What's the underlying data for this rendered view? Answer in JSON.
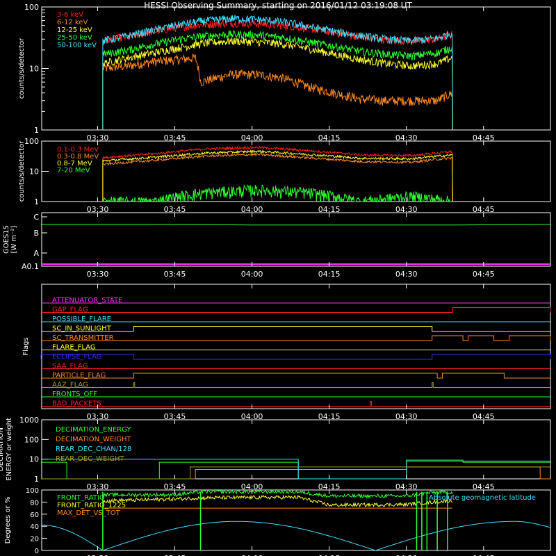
{
  "title": "HESSI Observing Summary, starting on 2016/01/12 03:19:08 UT",
  "colors": {
    "red": "#ff2020",
    "orange": "#ff8a20",
    "yellow": "#ffff30",
    "green": "#30ff30",
    "cyan": "#40e0ff",
    "magenta": "#ff30ff",
    "blue": "#3030ff",
    "olive": "#a0a030",
    "white": "#ffffff"
  },
  "chart_data": [
    {
      "id": "panel1",
      "type": "line",
      "ylabel": "counts/s/detector",
      "yscale": "log",
      "ylim": [
        1,
        100
      ],
      "yticks": [
        "1",
        "10",
        "100"
      ],
      "xticks": [
        "03:30",
        "03:45",
        "04:00",
        "04:15",
        "04:30",
        "04:45"
      ],
      "legend_position": "top-left",
      "series": [
        {
          "name": "3-6 keV",
          "color": "red",
          "x": [
            "03:31",
            "03:36",
            "03:41",
            "03:46",
            "03:51",
            "03:56",
            "04:01",
            "04:06",
            "04:11",
            "04:16",
            "04:21",
            "04:26",
            "04:31",
            "04:36",
            "04:39"
          ],
          "y": [
            28,
            33,
            40,
            47,
            52,
            55,
            54,
            50,
            45,
            38,
            33,
            29,
            28,
            30,
            36
          ]
        },
        {
          "name": "6-12 keV",
          "color": "orange",
          "x": [
            "03:31",
            "03:36",
            "03:41",
            "03:46",
            "03:49",
            "03:50",
            "03:56",
            "04:01",
            "04:06",
            "04:11",
            "04:16",
            "04:21",
            "04:26",
            "04:31",
            "04:36",
            "04:39"
          ],
          "y": [
            10,
            11,
            13,
            14,
            15,
            6,
            8,
            8,
            7,
            5,
            4,
            3.2,
            3,
            3,
            3,
            4
          ]
        },
        {
          "name": "12-25 keV",
          "color": "yellow",
          "x": [
            "03:31",
            "03:36",
            "03:41",
            "03:46",
            "03:51",
            "03:56",
            "04:01",
            "04:06",
            "04:11",
            "04:16",
            "04:21",
            "04:26",
            "04:31",
            "04:36",
            "04:39"
          ],
          "y": [
            12,
            15,
            18,
            22,
            26,
            28,
            27,
            25,
            21,
            17,
            14,
            12,
            11,
            12,
            15
          ]
        },
        {
          "name": "25-50 keV",
          "color": "green",
          "x": [
            "03:31",
            "03:36",
            "03:41",
            "03:46",
            "03:51",
            "03:56",
            "04:01",
            "04:06",
            "04:11",
            "04:16",
            "04:21",
            "04:26",
            "04:31",
            "04:36",
            "04:39"
          ],
          "y": [
            17,
            20,
            25,
            30,
            34,
            36,
            35,
            32,
            27,
            23,
            19,
            17,
            16,
            18,
            22
          ]
        },
        {
          "name": "50-100 keV",
          "color": "cyan",
          "x": [
            "03:31",
            "03:36",
            "03:41",
            "03:46",
            "03:51",
            "03:56",
            "04:01",
            "04:06",
            "04:11",
            "04:16",
            "04:21",
            "04:26",
            "04:31",
            "04:36",
            "04:39"
          ],
          "y": [
            28,
            34,
            42,
            52,
            60,
            65,
            63,
            57,
            48,
            40,
            34,
            30,
            28,
            31,
            38
          ]
        }
      ]
    },
    {
      "id": "panel2",
      "type": "line",
      "ylabel": "counts/s/detector",
      "yscale": "log",
      "ylim": [
        1,
        100
      ],
      "yticks": [
        "1",
        "10",
        "100"
      ],
      "xticks": [
        "03:30",
        "03:45",
        "04:00",
        "04:15",
        "04:30",
        "04:45"
      ],
      "legend_position": "top-left",
      "series": [
        {
          "name": "0.1-0.3 MeV",
          "color": "red",
          "x": [
            "03:31",
            "03:41",
            "03:51",
            "04:01",
            "04:11",
            "04:21",
            "04:31",
            "04:39"
          ],
          "y": [
            28,
            38,
            55,
            62,
            48,
            35,
            33,
            45
          ]
        },
        {
          "name": "0.3-0.8 MeV",
          "color": "orange",
          "x": [
            "03:31",
            "03:41",
            "03:51",
            "04:01",
            "04:11",
            "04:21",
            "04:31",
            "04:39"
          ],
          "y": [
            17,
            23,
            32,
            36,
            28,
            21,
            20,
            28
          ]
        },
        {
          "name": "0.8-7 MeV",
          "color": "yellow",
          "x": [
            "03:31",
            "03:41",
            "03:51",
            "04:01",
            "04:11",
            "04:21",
            "04:31",
            "04:39"
          ],
          "y": [
            22,
            29,
            40,
            46,
            36,
            27,
            26,
            35
          ]
        },
        {
          "name": "7-20 MeV",
          "color": "green",
          "x": [
            "03:31",
            "03:41",
            "03:51",
            "04:01",
            "04:11",
            "04:21",
            "04:31",
            "04:39"
          ],
          "y": [
            1,
            1,
            2,
            2.5,
            2,
            1,
            1.5,
            1
          ]
        }
      ]
    },
    {
      "id": "panel3",
      "type": "line",
      "ylabel": "GOES15 [W m⁻²]",
      "yticks": [
        "A0.1",
        "A",
        "B",
        "C"
      ],
      "xticks": [
        "03:30",
        "03:45",
        "04:00",
        "04:15",
        "04:30",
        "04:45"
      ],
      "series": [
        {
          "name": "",
          "color": "green",
          "x": [
            "03:19",
            "03:40",
            "04:00",
            "04:20",
            "04:40",
            "04:58"
          ],
          "y": [
            2.55,
            2.55,
            2.5,
            2.5,
            2.5,
            2.55
          ]
        }
      ]
    },
    {
      "id": "panel4",
      "type": "line",
      "ylabel": "Flags",
      "xticks": [
        "03:30",
        "03:45",
        "04:00",
        "04:15",
        "04:30",
        "04:45"
      ],
      "flags": [
        {
          "name": "ATTENUATOR_STATE",
          "color": "magenta",
          "on": []
        },
        {
          "name": "GAP_FLAG",
          "color": "red",
          "on": [
            [
              "04:39",
              "04:58"
            ]
          ]
        },
        {
          "name": "POSSIBLE_FLARE",
          "color": "cyan",
          "on": []
        },
        {
          "name": "SC_IN_SUNLIGHT",
          "color": "yellow",
          "on": [
            [
              "03:37",
              "04:35"
            ]
          ]
        },
        {
          "name": "SC_TRANSMITTER",
          "color": "orange",
          "on": [
            [
              "04:35",
              "04:41"
            ],
            [
              "04:42",
              "04:47"
            ],
            [
              "04:50",
              "04:58"
            ]
          ]
        },
        {
          "name": "FLARE_FLAG",
          "color": "yellow",
          "on": []
        },
        {
          "name": "ECLIPSE_FLAG",
          "color": "blue",
          "on": [
            [
              "03:19",
              "03:37"
            ],
            [
              "04:35",
              "04:58"
            ]
          ]
        },
        {
          "name": "SAA_FLAG",
          "color": "red",
          "on": []
        },
        {
          "name": "PARTICLE_FLAG",
          "color": "orange",
          "on": [
            [
              "03:37",
              "04:36"
            ],
            [
              "04:37",
              "04:49"
            ]
          ]
        },
        {
          "name": "AAZ_FLAG",
          "color": "olive",
          "on": [
            [
              "03:37",
              "03:37"
            ],
            [
              "04:35",
              "04:35"
            ]
          ]
        },
        {
          "name": "FRONTS_OFF",
          "color": "green",
          "on": []
        },
        {
          "name": "BAD_PACKETS",
          "color": "red",
          "on": [
            [
              "04:23",
              "04:23"
            ]
          ]
        }
      ]
    },
    {
      "id": "panel5",
      "type": "line",
      "ylabel": "DECIMATION ENERGY or weight",
      "yscale": "log",
      "ylim": [
        1,
        1000
      ],
      "yticks": [
        "1",
        "10",
        "100",
        "1000"
      ],
      "xticks": [
        "03:30",
        "03:45",
        "04:00",
        "04:15",
        "04:30",
        "04:45"
      ],
      "legend_position": "top-left",
      "series": [
        {
          "name": "DECIMATION_ENERGY",
          "color": "green",
          "x": [
            "03:19",
            "03:24",
            "03:24",
            "03:42",
            "03:42",
            "04:09",
            "04:09",
            "04:30",
            "04:30",
            "04:41",
            "04:41",
            "04:58"
          ],
          "y": [
            7,
            7,
            1,
            1,
            7,
            7,
            1,
            1,
            9,
            9,
            7,
            7
          ]
        },
        {
          "name": "DECIMATION_WEIGHT",
          "color": "orange",
          "x": [
            "03:19",
            "03:49",
            "03:49",
            "04:30",
            "04:30",
            "04:56",
            "04:56",
            "04:58"
          ],
          "y": [
            1,
            1,
            3,
            3,
            4,
            4,
            1,
            1
          ]
        },
        {
          "name": "REAR_DEC_CHAN/128",
          "color": "cyan",
          "x": [
            "03:19",
            "03:44",
            "03:44",
            "04:09",
            "04:09",
            "04:30",
            "04:30",
            "04:58"
          ],
          "y": [
            10,
            10,
            10,
            10,
            1,
            1,
            8,
            8
          ]
        },
        {
          "name": "REAR_DEC_WEIGHT",
          "color": "olive",
          "x": [
            "03:19",
            "03:48",
            "03:48",
            "04:30",
            "04:30",
            "04:58"
          ],
          "y": [
            1,
            1,
            4,
            4,
            4,
            4
          ]
        }
      ]
    },
    {
      "id": "panel6",
      "type": "line",
      "ylabel": "Degrees or %",
      "ylim": [
        0,
        100
      ],
      "yticks": [
        "0",
        "20",
        "40",
        "60",
        "80",
        "100"
      ],
      "xticks": [
        "03:30",
        "03:45",
        "04:00",
        "04:15",
        "04:30",
        "04:45"
      ],
      "legend_position": "top-left",
      "annotation": "Absolute geomagnetic latitude",
      "series": [
        {
          "name": "FRONT_RATIO",
          "color": "green",
          "x": [
            "03:31",
            "03:45",
            "03:50",
            "04:09",
            "04:15",
            "04:30",
            "04:35",
            "04:39"
          ],
          "y": [
            92,
            92,
            97,
            97,
            90,
            90,
            96,
            96
          ]
        },
        {
          "name": "FRONT_RATIO_1225",
          "color": "yellow",
          "x": [
            "03:31",
            "03:45",
            "03:50",
            "04:09",
            "04:15",
            "04:30",
            "04:35",
            "04:39"
          ],
          "y": [
            82,
            85,
            87,
            88,
            75,
            76,
            80,
            82
          ]
        },
        {
          "name": "MAX_DET_VS_TOT",
          "color": "orange",
          "x": [
            "03:31",
            "04:39"
          ],
          "y": [
            70,
            70
          ]
        },
        {
          "name": "",
          "color": "cyan",
          "x": [
            "03:19",
            "03:31",
            "03:57",
            "04:24",
            "04:51",
            "04:58"
          ],
          "y": [
            42,
            0,
            48,
            0,
            48,
            38
          ]
        }
      ]
    }
  ]
}
